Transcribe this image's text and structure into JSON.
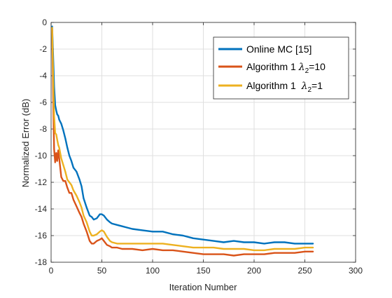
{
  "chart_data": {
    "type": "line",
    "title": "",
    "xlabel": "Iteration Number",
    "ylabel": "Normalized Error (dB)",
    "xlim": [
      0,
      300
    ],
    "ylim": [
      -18,
      0
    ],
    "xticks": [
      0,
      50,
      100,
      150,
      200,
      250,
      300
    ],
    "yticks": [
      0,
      -2,
      -4,
      -6,
      -8,
      -10,
      -12,
      -14,
      -16,
      -18
    ],
    "grid": true,
    "legend_position": "top-right",
    "legend_labels": {
      "online_mc": "Online MC [15]",
      "alg1_l10_prefix": "Algorithm 1 ",
      "alg1_l10_suffix": "=10",
      "alg1_l1_prefix": "Algorithm 1  ",
      "alg1_l1_suffix": "=1",
      "lambda_symbol": "λ",
      "lambda_subscript": "2"
    },
    "series": [
      {
        "name": "Online MC [15]",
        "color": "#0072BD",
        "x": [
          1,
          2,
          3,
          4,
          5,
          6,
          7,
          8,
          10,
          12,
          14,
          16,
          18,
          20,
          22,
          25,
          28,
          30,
          32,
          35,
          38,
          40,
          42,
          45,
          48,
          50,
          52,
          55,
          58,
          60,
          65,
          70,
          75,
          80,
          90,
          100,
          110,
          120,
          130,
          140,
          150,
          160,
          170,
          180,
          190,
          200,
          210,
          220,
          230,
          240,
          250,
          258
        ],
        "y": [
          -0.3,
          -2.5,
          -4.8,
          -6.2,
          -6.6,
          -6.9,
          -7.0,
          -7.3,
          -7.6,
          -8.1,
          -8.7,
          -9.4,
          -10.0,
          -10.4,
          -10.9,
          -11.2,
          -11.8,
          -12.3,
          -13.2,
          -13.9,
          -14.5,
          -14.6,
          -14.8,
          -14.7,
          -14.4,
          -14.4,
          -14.5,
          -14.8,
          -15.0,
          -15.1,
          -15.2,
          -15.3,
          -15.4,
          -15.5,
          -15.6,
          -15.7,
          -15.7,
          -15.9,
          -16.0,
          -16.2,
          -16.3,
          -16.4,
          -16.5,
          -16.4,
          -16.5,
          -16.5,
          -16.6,
          -16.5,
          -16.5,
          -16.6,
          -16.6,
          -16.6
        ]
      },
      {
        "name": "Algorithm 1 λ2=10",
        "color": "#D95319",
        "x": [
          1,
          2,
          3,
          4,
          5,
          6,
          7,
          8,
          10,
          12,
          14,
          16,
          18,
          20,
          22,
          25,
          28,
          30,
          32,
          35,
          38,
          40,
          42,
          45,
          48,
          50,
          52,
          55,
          58,
          60,
          65,
          70,
          75,
          80,
          90,
          100,
          110,
          120,
          130,
          140,
          150,
          160,
          170,
          180,
          190,
          200,
          210,
          220,
          230,
          240,
          250,
          258
        ],
        "y": [
          -0.5,
          -5.5,
          -9.5,
          -10.5,
          -9.8,
          -10.4,
          -9.6,
          -10.2,
          -11.6,
          -11.9,
          -11.9,
          -12.4,
          -12.8,
          -12.8,
          -13.3,
          -13.8,
          -14.3,
          -14.6,
          -15.1,
          -15.7,
          -16.4,
          -16.6,
          -16.6,
          -16.4,
          -16.3,
          -16.2,
          -16.4,
          -16.7,
          -16.8,
          -16.9,
          -16.9,
          -17.0,
          -17.0,
          -17.0,
          -17.1,
          -17.0,
          -17.1,
          -17.1,
          -17.2,
          -17.3,
          -17.4,
          -17.4,
          -17.4,
          -17.5,
          -17.4,
          -17.4,
          -17.4,
          -17.3,
          -17.3,
          -17.3,
          -17.2,
          -17.2
        ]
      },
      {
        "name": "Algorithm 1  λ2=1",
        "color": "#EDB120",
        "x": [
          1,
          2,
          3,
          4,
          5,
          6,
          7,
          8,
          10,
          12,
          14,
          16,
          18,
          20,
          22,
          25,
          28,
          30,
          32,
          35,
          38,
          40,
          42,
          45,
          48,
          50,
          52,
          55,
          58,
          60,
          65,
          70,
          75,
          80,
          90,
          100,
          110,
          120,
          130,
          140,
          150,
          160,
          170,
          180,
          190,
          200,
          210,
          220,
          230,
          240,
          250,
          258
        ],
        "y": [
          -0.4,
          -4.0,
          -7.0,
          -8.3,
          -8.4,
          -8.8,
          -9.2,
          -9.4,
          -10.2,
          -10.7,
          -11.2,
          -11.8,
          -12.0,
          -12.2,
          -12.6,
          -13.0,
          -13.5,
          -13.9,
          -14.5,
          -15.0,
          -15.7,
          -16.0,
          -16.0,
          -15.9,
          -15.7,
          -15.6,
          -15.7,
          -16.1,
          -16.4,
          -16.5,
          -16.6,
          -16.6,
          -16.6,
          -16.6,
          -16.6,
          -16.6,
          -16.6,
          -16.7,
          -16.8,
          -16.9,
          -16.9,
          -16.9,
          -17.0,
          -17.0,
          -17.0,
          -17.1,
          -17.1,
          -17.0,
          -17.0,
          -17.0,
          -16.9,
          -16.9
        ]
      }
    ]
  }
}
